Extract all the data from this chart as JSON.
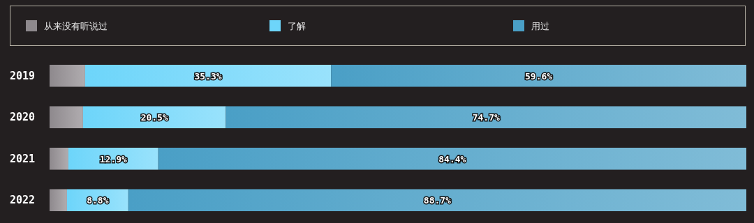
{
  "chart_data": {
    "type": "bar",
    "orientation": "horizontal",
    "stacked": true,
    "categories": [
      "2019",
      "2020",
      "2021",
      "2022"
    ],
    "series": [
      {
        "name": "从来没有听说过",
        "color": "#8e898d",
        "values": [
          5.1,
          4.8,
          2.7,
          2.5
        ],
        "value_labels": [
          null,
          null,
          null,
          null
        ]
      },
      {
        "name": "了解",
        "color": "#6dd5fa",
        "values": [
          35.3,
          20.5,
          12.9,
          8.8
        ],
        "value_labels": [
          "35.3%",
          "20.5%",
          "12.9%",
          "8.8%"
        ]
      },
      {
        "name": "用过",
        "color": "#4a9fc6",
        "values": [
          59.6,
          74.7,
          84.4,
          88.7
        ],
        "value_labels": [
          "59.6%",
          "74.7%",
          "84.4%",
          "88.7%"
        ]
      }
    ],
    "xlim": [
      0,
      100
    ],
    "tick_labels": "y",
    "legend": "top",
    "grid": false
  }
}
